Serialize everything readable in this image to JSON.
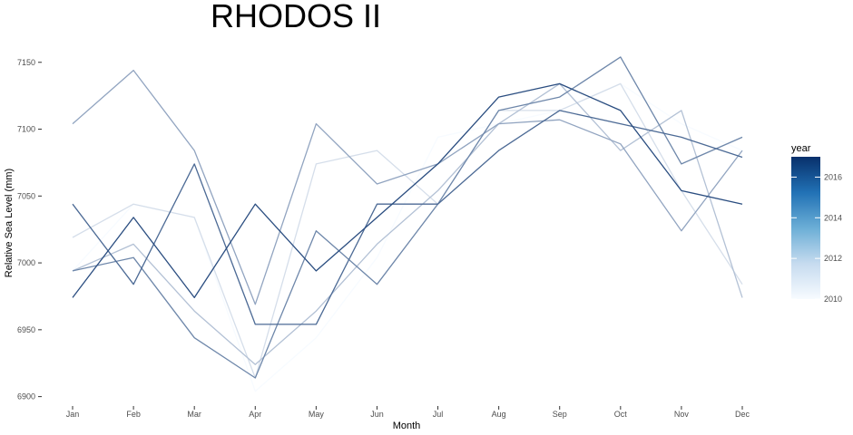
{
  "chart_data": {
    "type": "line",
    "title": "RHODOS II",
    "xlabel": "Month",
    "ylabel": "Relative Sea Level (mm)",
    "categories": [
      "Jan",
      "Feb",
      "Mar",
      "Apr",
      "May",
      "Jun",
      "Jul",
      "Aug",
      "Sep",
      "Oct",
      "Nov",
      "Dec"
    ],
    "ylim": [
      6895,
      7160
    ],
    "yticks": [
      6900,
      6950,
      7000,
      7050,
      7100,
      7150
    ],
    "grid": false,
    "legend": {
      "title": "year",
      "placement": "right",
      "range": [
        2010,
        2017
      ],
      "ticks": [
        2010,
        2012,
        2014,
        2016
      ],
      "color_low": "#f7fbff",
      "color_high": "#08306b"
    },
    "series": [
      {
        "year": 2010,
        "values": [
          6994,
          7044,
          7034,
          6904,
          6944,
          7004,
          7094,
          7104,
          7114,
          7134,
          7104,
          7084
        ]
      },
      {
        "year": 2011,
        "values": [
          7019,
          7044,
          7034,
          6914,
          7074,
          7084,
          7044,
          7114,
          7114,
          7134,
          7054,
          6984
        ]
      },
      {
        "year": 2012,
        "values": [
          6994,
          7014,
          6964,
          6924,
          6964,
          7014,
          7054,
          7104,
          7134,
          7084,
          7114,
          6974
        ]
      },
      {
        "year": 2013,
        "values": [
          7104,
          7144,
          7084,
          6969,
          7104,
          7059,
          7074,
          7104,
          7107,
          7089,
          7024,
          7084
        ]
      },
      {
        "year": 2014,
        "values": [
          6994,
          7004,
          6944,
          6914,
          7024,
          6984,
          7044,
          7114,
          7124,
          7154,
          7074,
          7094
        ]
      },
      {
        "year": 2015,
        "values": [
          7044,
          6984,
          7074,
          6954,
          6954,
          7044,
          7044,
          7084,
          7114,
          7104,
          7094,
          7079
        ]
      },
      {
        "year": 2016,
        "values": [
          6974,
          7034,
          6974,
          7044,
          6994,
          7034,
          7074,
          7124,
          7134,
          7114,
          7054,
          7044
        ]
      }
    ]
  }
}
